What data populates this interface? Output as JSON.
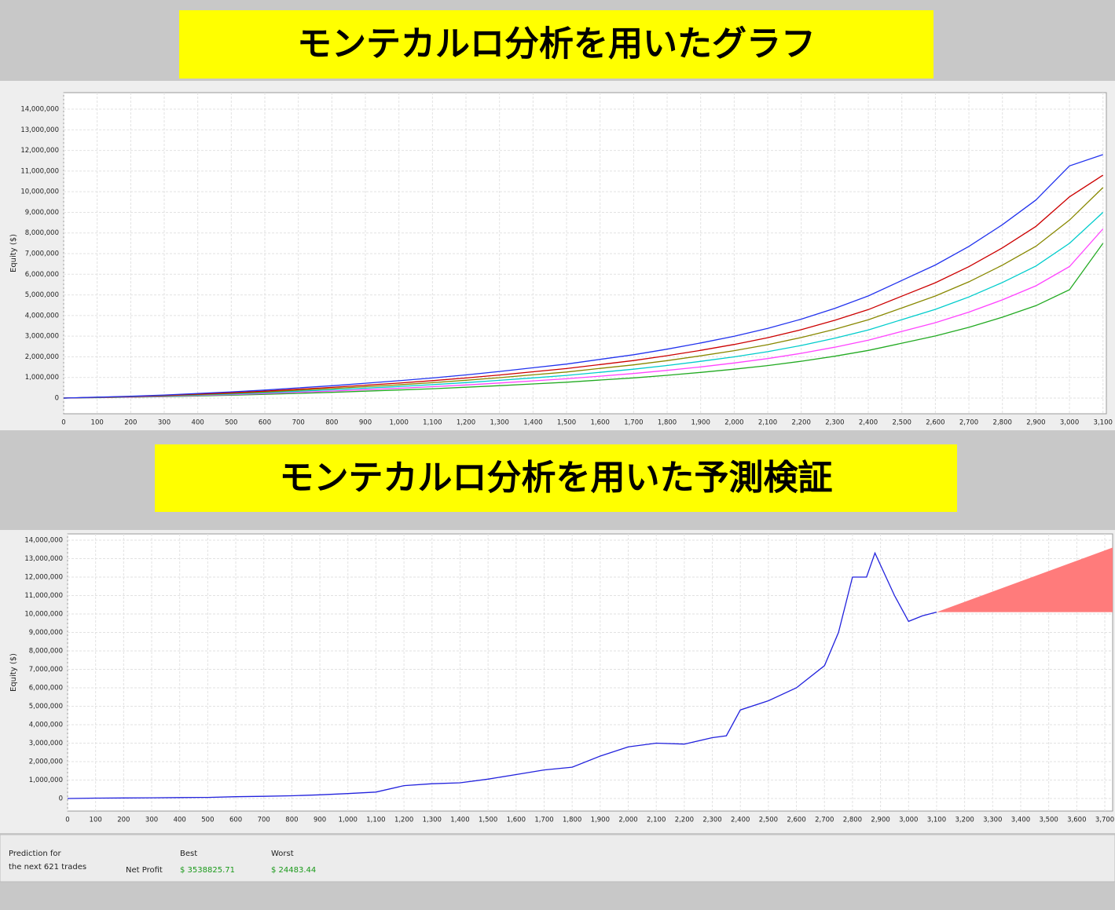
{
  "chart_data": [
    {
      "type": "line",
      "title": "モンテカルロ分析を用いたグラフ",
      "y_label": "Equity ($)",
      "grid": true,
      "xlim": [
        0,
        3110
      ],
      "ylim": [
        -760000,
        14800000
      ],
      "xticks": [
        0,
        100,
        200,
        300,
        400,
        500,
        600,
        700,
        800,
        900,
        {
          "value": 1000,
          "label": "1,000"
        },
        {
          "value": 1100,
          "label": "1,100"
        },
        {
          "value": 1200,
          "label": "1,200"
        },
        {
          "value": 1300,
          "label": "1,300"
        },
        {
          "value": 1400,
          "label": "1,400"
        },
        {
          "value": 1500,
          "label": "1,500"
        },
        {
          "value": 1600,
          "label": "1,600"
        },
        {
          "value": 1700,
          "label": "1,700"
        },
        {
          "value": 1800,
          "label": "1,800"
        },
        {
          "value": 1900,
          "label": "1,900"
        },
        {
          "value": 2000,
          "label": "2,000"
        },
        {
          "value": 2100,
          "label": "2,100"
        },
        {
          "value": 2200,
          "label": "2,200"
        },
        {
          "value": 2300,
          "label": "2,300"
        },
        {
          "value": 2400,
          "label": "2,400"
        },
        {
          "value": 2500,
          "label": "2,500"
        },
        {
          "value": 2600,
          "label": "2,600"
        },
        {
          "value": 2700,
          "label": "2,700"
        },
        {
          "value": 2800,
          "label": "2,800"
        },
        {
          "value": 2900,
          "label": "2,900"
        },
        {
          "value": 3000,
          "label": "3,000"
        },
        {
          "value": 3100,
          "label": "3,100"
        }
      ],
      "yticks": [
        0,
        {
          "value": 1000000,
          "label": "1,000,000"
        },
        {
          "value": 2000000,
          "label": "2,000,000"
        },
        {
          "value": 3000000,
          "label": "3,000,000"
        },
        {
          "value": 4000000,
          "label": "4,000,000"
        },
        {
          "value": 5000000,
          "label": "5,000,000"
        },
        {
          "value": 6000000,
          "label": "6,000,000"
        },
        {
          "value": 7000000,
          "label": "7,000,000"
        },
        {
          "value": 8000000,
          "label": "8,000,000"
        },
        {
          "value": 9000000,
          "label": "9,000,000"
        },
        {
          "value": 10000000,
          "label": "10,000,000"
        },
        {
          "value": 11000000,
          "label": "11,000,000"
        },
        {
          "value": 12000000,
          "label": "12,000,000"
        },
        {
          "value": 13000000,
          "label": "13,000,000"
        },
        {
          "value": 14000000,
          "label": "14,000,000"
        }
      ],
      "x": [
        0,
        100,
        200,
        300,
        400,
        500,
        600,
        700,
        800,
        900,
        1000,
        1100,
        1200,
        1300,
        1400,
        1500,
        1600,
        1700,
        1800,
        1900,
        2000,
        2100,
        2200,
        2300,
        2400,
        2500,
        2600,
        2700,
        2800,
        2900,
        3000,
        3100
      ],
      "series": [
        {
          "color": "#22aa22",
          "values": [
            0,
            21000,
            42000,
            70000,
            105000,
            140000,
            182000,
            231000,
            280000,
            336000,
            392000,
            455000,
            525000,
            602000,
            686000,
            770000,
            875000,
            980000,
            1106000,
            1246000,
            1400000,
            1575000,
            1785000,
            2030000,
            2310000,
            2660000,
            3010000,
            3430000,
            3920000,
            4480000,
            5250000,
            7500000
          ]
        },
        {
          "color": "#ff44ff",
          "values": [
            0,
            26000,
            51000,
            85000,
            128000,
            170000,
            221000,
            281000,
            340000,
            408000,
            476000,
            553000,
            638000,
            731000,
            833000,
            935000,
            1063000,
            1190000,
            1343000,
            1513000,
            1700000,
            1913000,
            2168000,
            2465000,
            2805000,
            3230000,
            3655000,
            4165000,
            4760000,
            5440000,
            6375000,
            8200000
          ]
        },
        {
          "color": "#00cccc",
          "values": [
            0,
            30000,
            60000,
            100000,
            150000,
            200000,
            260000,
            330000,
            400000,
            480000,
            560000,
            650000,
            750000,
            860000,
            980000,
            1100000,
            1250000,
            1400000,
            1580000,
            1780000,
            2000000,
            2250000,
            2550000,
            2900000,
            3300000,
            3800000,
            4300000,
            4900000,
            5600000,
            6400000,
            7500000,
            9000000
          ]
        },
        {
          "color": "#888800",
          "values": [
            0,
            35000,
            69000,
            115000,
            173000,
            230000,
            299000,
            380000,
            460000,
            552000,
            644000,
            748000,
            863000,
            989000,
            1127000,
            1265000,
            1438000,
            1610000,
            1817000,
            2047000,
            2300000,
            2588000,
            2933000,
            3335000,
            3795000,
            4370000,
            4945000,
            5635000,
            6440000,
            7360000,
            8625000,
            10200000
          ]
        },
        {
          "color": "#cc0000",
          "values": [
            0,
            39000,
            78000,
            130000,
            195000,
            260000,
            338000,
            429000,
            520000,
            624000,
            728000,
            845000,
            975000,
            1118000,
            1274000,
            1430000,
            1625000,
            1820000,
            2054000,
            2314000,
            2600000,
            2925000,
            3315000,
            3770000,
            4290000,
            4940000,
            5590000,
            6370000,
            7280000,
            8320000,
            9750000,
            10800000
          ]
        },
        {
          "color": "#2233ee",
          "values": [
            0,
            45000,
            90000,
            150000,
            225000,
            300000,
            390000,
            495000,
            600000,
            720000,
            840000,
            975000,
            1125000,
            1290000,
            1470000,
            1650000,
            1875000,
            2100000,
            2370000,
            2670000,
            3000000,
            3375000,
            3825000,
            4350000,
            4950000,
            5700000,
            6450000,
            7350000,
            8400000,
            9600000,
            11250000,
            11800000
          ]
        }
      ]
    },
    {
      "type": "line",
      "title": "モンテカルロ分析を用いた予測検証",
      "y_label": "Equity ($)",
      "grid": true,
      "xlim": [
        0,
        3728
      ],
      "ylim": [
        -680000,
        14340000
      ],
      "xticks": [
        0,
        100,
        200,
        300,
        400,
        500,
        600,
        700,
        800,
        900,
        {
          "value": 1000,
          "label": "1,000"
        },
        {
          "value": 1100,
          "label": "1,100"
        },
        {
          "value": 1200,
          "label": "1,200"
        },
        {
          "value": 1300,
          "label": "1,300"
        },
        {
          "value": 1400,
          "label": "1,400"
        },
        {
          "value": 1500,
          "label": "1,500"
        },
        {
          "value": 1600,
          "label": "1,600"
        },
        {
          "value": 1700,
          "label": "1,700"
        },
        {
          "value": 1800,
          "label": "1,800"
        },
        {
          "value": 1900,
          "label": "1,900"
        },
        {
          "value": 2000,
          "label": "2,000"
        },
        {
          "value": 2100,
          "label": "2,100"
        },
        {
          "value": 2200,
          "label": "2,200"
        },
        {
          "value": 2300,
          "label": "2,300"
        },
        {
          "value": 2400,
          "label": "2,400"
        },
        {
          "value": 2500,
          "label": "2,500"
        },
        {
          "value": 2600,
          "label": "2,600"
        },
        {
          "value": 2700,
          "label": "2,700"
        },
        {
          "value": 2800,
          "label": "2,800"
        },
        {
          "value": 2900,
          "label": "2,900"
        },
        {
          "value": 3000,
          "label": "3,000"
        },
        {
          "value": 3100,
          "label": "3,100"
        },
        {
          "value": 3200,
          "label": "3,200"
        },
        {
          "value": 3300,
          "label": "3,300"
        },
        {
          "value": 3400,
          "label": "3,400"
        },
        {
          "value": 3500,
          "label": "3,500"
        },
        {
          "value": 3600,
          "label": "3,600"
        },
        {
          "value": 3700,
          "label": "3,700"
        }
      ],
      "yticks": [
        0,
        {
          "value": 1000000,
          "label": "1,000,000"
        },
        {
          "value": 2000000,
          "label": "2,000,000"
        },
        {
          "value": 3000000,
          "label": "3,000,000"
        },
        {
          "value": 4000000,
          "label": "4,000,000"
        },
        {
          "value": 5000000,
          "label": "5,000,000"
        },
        {
          "value": 6000000,
          "label": "6,000,000"
        },
        {
          "value": 7000000,
          "label": "7,000,000"
        },
        {
          "value": 8000000,
          "label": "8,000,000"
        },
        {
          "value": 9000000,
          "label": "9,000,000"
        },
        {
          "value": 10000000,
          "label": "10,000,000"
        },
        {
          "value": 11000000,
          "label": "11,000,000"
        },
        {
          "value": 12000000,
          "label": "12,000,000"
        },
        {
          "value": 13000000,
          "label": "13,000,000"
        },
        {
          "value": 14000000,
          "label": "14,000,000"
        }
      ],
      "x": [
        0,
        100,
        200,
        300,
        400,
        500,
        600,
        700,
        800,
        900,
        1000,
        1100,
        1200,
        1300,
        1400,
        1500,
        1600,
        1700,
        1800,
        1900,
        2000,
        2100,
        2200,
        2300,
        2350,
        2400,
        2500,
        2600,
        2700,
        2750,
        2800,
        2850,
        2880,
        2950,
        3000,
        3050,
        3100
      ],
      "series": [
        {
          "color": "#2222dd",
          "values": [
            0,
            20000,
            30000,
            40000,
            50000,
            60000,
            100000,
            120000,
            150000,
            200000,
            270000,
            350000,
            700000,
            800000,
            850000,
            1050000,
            1300000,
            1550000,
            1700000,
            2300000,
            2800000,
            3000000,
            2950000,
            3300000,
            3400000,
            4800000,
            5300000,
            6000000,
            7200000,
            9000000,
            12000000,
            12000000,
            13300000,
            11000000,
            9600000,
            9900000,
            10100000
          ]
        }
      ],
      "forecast": {
        "color": "#ff7b7b",
        "x": [
          3100,
          3728
        ],
        "upper": [
          10100000,
          13600000
        ],
        "lower": [
          10100000,
          10100000
        ]
      }
    }
  ],
  "prediction": {
    "heading": [
      "Prediction for",
      "the next 621 trades"
    ],
    "columns": [
      "Best",
      "Worst"
    ],
    "row_label": "Net Profit",
    "values": [
      "$ 3538825.71",
      "$ 24483.44"
    ]
  }
}
